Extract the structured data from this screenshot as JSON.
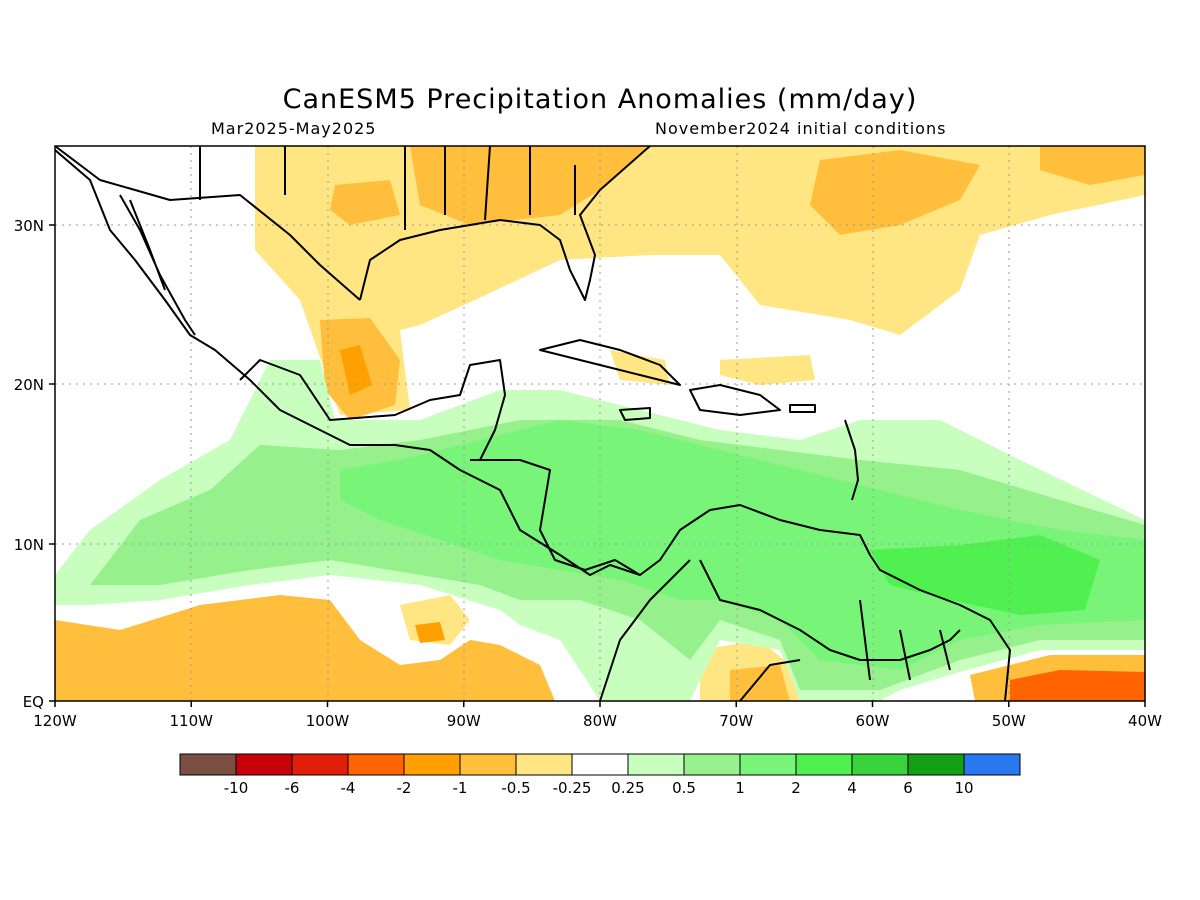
{
  "title": "CanESM5 Precipitation Anomalies (mm/day)",
  "season": "Mar2025-May2025",
  "init": "November2024 initial conditions",
  "lat_labels": [
    "30N",
    "20N",
    "10N",
    "EQ"
  ],
  "lon_labels": [
    "120W",
    "110W",
    "100W",
    "90W",
    "80W",
    "70W",
    "60W",
    "50W",
    "40W"
  ],
  "colorbar": {
    "colors": [
      "#7a4f42",
      "#c8000a",
      "#e01e0a",
      "#ff6400",
      "#ffa000",
      "#ffbe3c",
      "#ffe682",
      "#ffffff",
      "#c8ffbe",
      "#96f08c",
      "#78f578",
      "#50f050",
      "#37d23c",
      "#14a014",
      "#2878f0"
    ],
    "labels": [
      "-10",
      "-6",
      "-4",
      "-2",
      "-1",
      "-0.5",
      "-0.25",
      "0.25",
      "0.5",
      "1",
      "2",
      "4",
      "6",
      "10"
    ]
  },
  "colors": {
    "dry_light": "#ffe682",
    "dry_mid": "#ffbe3c",
    "dry_strong": "#ffa000",
    "dry_heavy": "#ff6400",
    "wet_light": "#c8ffbe",
    "wet_mid": "#96f08c",
    "wet_strong": "#78f578",
    "wet_heavy": "#50f050"
  }
}
